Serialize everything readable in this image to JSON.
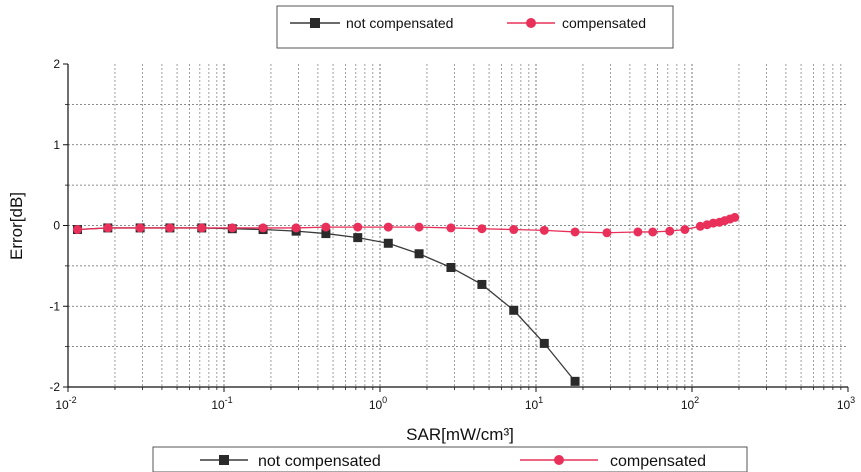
{
  "chart_data": {
    "type": "line",
    "xlabel": "SAR[mW/cm³]",
    "ylabel": "Error[dB]",
    "x_scale": "log",
    "xlim": [
      0.01,
      1000
    ],
    "ylim": [
      -2,
      2
    ],
    "x_ticks": [
      {
        "base": "10",
        "exp": "-2"
      },
      {
        "base": "10",
        "exp": "-1"
      },
      {
        "base": "10",
        "exp": "0"
      },
      {
        "base": "10",
        "exp": "1"
      },
      {
        "base": "10",
        "exp": "2"
      },
      {
        "base": "10",
        "exp": "3"
      }
    ],
    "y_ticks": [
      "-2",
      "-1",
      "0",
      "1",
      "2"
    ],
    "grid": true,
    "legend_top": [
      "not compensated",
      "compensated"
    ],
    "legend_bottom": [
      "not compensated",
      "compensated"
    ],
    "series": [
      {
        "name": "not compensated",
        "color": "#3a3a3a",
        "marker": "square",
        "x": [
          0.0115,
          0.018,
          0.029,
          0.045,
          0.072,
          0.113,
          0.178,
          0.29,
          0.45,
          0.72,
          1.13,
          1.78,
          2.85,
          4.5,
          7.2,
          11.3,
          17.8
        ],
        "y": [
          -0.05,
          -0.03,
          -0.03,
          -0.03,
          -0.03,
          -0.04,
          -0.05,
          -0.07,
          -0.1,
          -0.15,
          -0.22,
          -0.35,
          -0.52,
          -0.73,
          -1.05,
          -1.46,
          -1.93
        ]
      },
      {
        "name": "compensated",
        "color": "#e8305a",
        "marker": "circle",
        "x": [
          0.0115,
          0.018,
          0.029,
          0.045,
          0.072,
          0.113,
          0.178,
          0.29,
          0.45,
          0.72,
          1.13,
          1.78,
          2.85,
          4.5,
          7.2,
          11.3,
          17.8,
          28.5,
          45,
          56,
          72,
          90,
          113,
          125,
          137,
          150,
          162,
          175,
          188
        ],
        "y": [
          -0.05,
          -0.03,
          -0.03,
          -0.03,
          -0.03,
          -0.03,
          -0.03,
          -0.03,
          -0.02,
          -0.02,
          -0.02,
          -0.02,
          -0.03,
          -0.04,
          -0.05,
          -0.06,
          -0.08,
          -0.09,
          -0.08,
          -0.08,
          -0.07,
          -0.05,
          -0.01,
          0.01,
          0.03,
          0.04,
          0.06,
          0.08,
          0.1
        ]
      }
    ]
  }
}
